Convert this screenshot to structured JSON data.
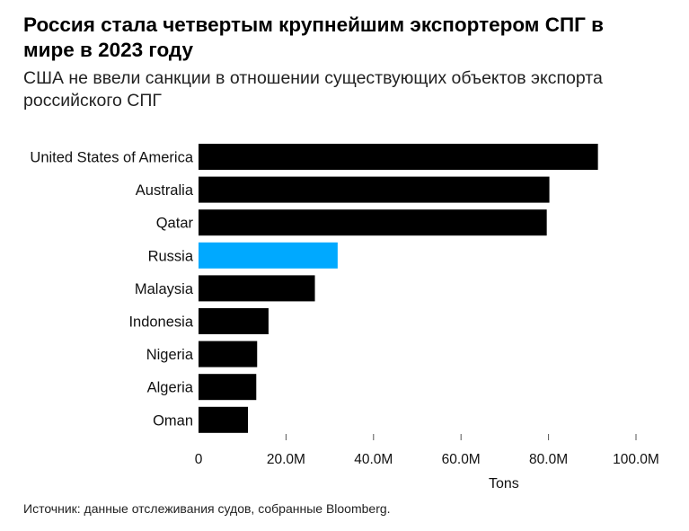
{
  "title": "Россия стала четвертым крупнейшим экспортером СПГ в мире в 2023 году",
  "subtitle": "США не ввели санкции в отношении существующих объектов экспорта российского СПГ",
  "source": "Источник: данные отслеживания судов, собранные Bloomberg.",
  "colors": {
    "default_bar": "#000000",
    "highlight_bar": "#00a9ff"
  },
  "chart_data": {
    "type": "bar",
    "orientation": "horizontal",
    "categories": [
      "United States of America",
      "Australia",
      "Qatar",
      "Russia",
      "Malaysia",
      "Indonesia",
      "Nigeria",
      "Algeria",
      "Oman"
    ],
    "values": [
      91.3,
      80.2,
      79.6,
      31.8,
      26.6,
      16.0,
      13.4,
      13.2,
      11.3
    ],
    "value_unit": "M",
    "highlight": "Russia",
    "xlabel": "Tons",
    "xlim": [
      0,
      100
    ],
    "xticks": [
      0,
      20,
      40,
      60,
      80,
      100
    ],
    "xtick_labels": [
      "0",
      "20.0M",
      "40.0M",
      "60.0M",
      "80.0M",
      "100.0M"
    ],
    "grid": false
  }
}
